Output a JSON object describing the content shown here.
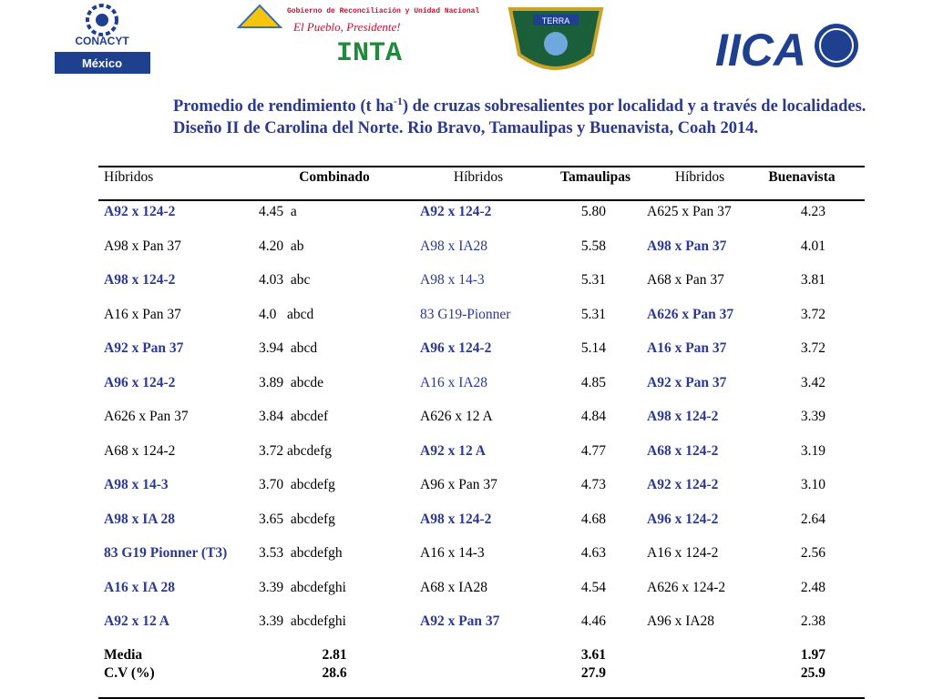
{
  "logos": {
    "conacyt": "CONACYT",
    "mexico": "México",
    "gobierno": "Gobierno de Reconciliación y Unidad Nacional",
    "pueblo": "El Pueblo, Presidente!",
    "inta": "INTA",
    "terra": "TERRA",
    "iica": "IICA"
  },
  "title": {
    "before": "Promedio de rendimiento (t ha",
    "sup": "-1",
    "after": ") de cruzas sobresalientes por localidad y a través de localidades. Diseño II de Carolina del Norte. Rio Bravo, Tamaulipas y Buenavista, Coah 2014."
  },
  "table": {
    "header": [
      "Híbridos",
      "Combinado",
      "Híbridos",
      "Tamaulipas",
      "Híbridos",
      "Buenavista"
    ],
    "rows": [
      [
        "A92 x 124-2",
        "4.45  a",
        "A92 x 124-2",
        "5.80",
        "A625 x Pan 37",
        "4.23"
      ],
      [
        "A98 x Pan 37",
        "4.20  ab",
        "A98 x IA28",
        "5.58",
        "A98 x Pan 37",
        "4.01"
      ],
      [
        "A98 x 124-2",
        "4.03  abc",
        "A98 x 14-3",
        "5.31",
        "A68 x Pan 37",
        "3.81"
      ],
      [
        "A16 x Pan 37",
        "4.0   abcd",
        "83 G19-Pionner",
        "5.31",
        "A626 x Pan 37",
        "3.72"
      ],
      [
        "A92 x Pan 37",
        "3.94  abcd",
        "A96 x 124-2",
        "5.14",
        "A16 x Pan 37",
        "3.72"
      ],
      [
        "A96 x 124-2",
        "3.89  abcde",
        "A16 x IA28",
        "4.85",
        "A92 x Pan 37",
        "3.42"
      ],
      [
        "A626 x Pan 37",
        "3.84  abcdef",
        "A626 x 12 A",
        "4.84",
        "A98 x 124-2",
        "3.39"
      ],
      [
        "A68 x 124-2",
        "3.72 abcdefg",
        "A92 x 12 A",
        "4.77",
        "A68 x 124-2",
        "3.19"
      ],
      [
        "A98 x 14-3",
        "3.70  abcdefg",
        "A96 x Pan 37",
        "4.73",
        "A92 x 124-2",
        "3.10"
      ],
      [
        "A98 x IA 28",
        "3.65  abcdefg",
        "A98 x 124-2",
        "4.68",
        "A96 x 124-2",
        "2.64"
      ],
      [
        "83 G19 Pionner (T3)",
        "3.53  abcdefgh",
        "A16 x 14-3",
        "4.63",
        "A16 x 124-2",
        "2.56"
      ],
      [
        "A16 x IA 28",
        "3.39  abcdefghi",
        "A68 x IA28",
        "4.54",
        "A626 x 124-2",
        "2.48"
      ],
      [
        "A92 x 12 A",
        "3.39  abcdefghi",
        "A92 x Pan 37",
        "4.46",
        "A96 x IA28",
        "2.38"
      ]
    ],
    "styles": [
      [
        "bold",
        "bold",
        "plain"
      ],
      [
        "plain",
        "blue",
        "bold"
      ],
      [
        "bold",
        "blue",
        "plain"
      ],
      [
        "plain",
        "blue",
        "bold"
      ],
      [
        "bold",
        "bold",
        "bold"
      ],
      [
        "bold",
        "blue",
        "bold"
      ],
      [
        "plain",
        "plain",
        "bold"
      ],
      [
        "plain",
        "bold",
        "bold"
      ],
      [
        "bold",
        "plain",
        "bold"
      ],
      [
        "bold",
        "bold",
        "bold"
      ],
      [
        "bold",
        "plain",
        "plain"
      ],
      [
        "bold",
        "plain",
        "plain"
      ],
      [
        "bold",
        "bold",
        "plain"
      ]
    ],
    "footer": [
      [
        "Media",
        "2.81",
        "3.61",
        "1.97"
      ],
      [
        "C.V (%)",
        "28.6",
        "27.9",
        "25.9"
      ]
    ]
  }
}
